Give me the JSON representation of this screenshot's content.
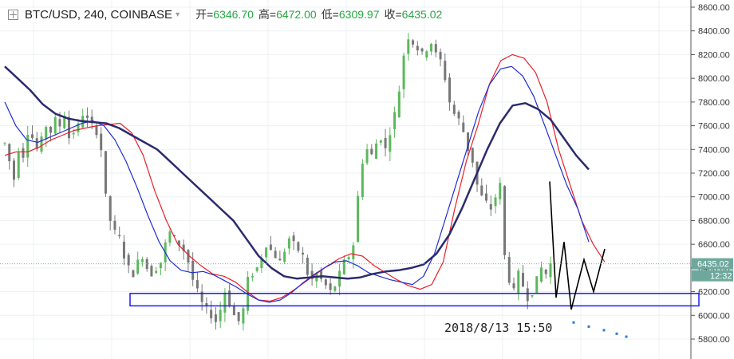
{
  "header": {
    "symbol": "BTC/USD, 240, COINBASE",
    "caret": "▾",
    "open_label": "开=",
    "open": "6346.70",
    "high_label": "高=",
    "high": "6472.00",
    "low_label": "低=",
    "low": "6309.97",
    "close_label": "收=",
    "close": "6435.02"
  },
  "chart_data": {
    "type": "candlestick",
    "y_axis": {
      "ticks": [
        5800,
        6000,
        6200,
        6400,
        6600,
        6800,
        7000,
        7200,
        7400,
        7600,
        7800,
        8000,
        8200,
        8400,
        8600
      ],
      "ylim": [
        5750,
        8620
      ],
      "unit": ".00"
    },
    "price_label": "6435.02",
    "timer_label": "12:32",
    "annotation": "2018/8/13  15:50",
    "grid": true,
    "support_zone": [
      6080,
      6185
    ],
    "candle_series": [
      7450,
      7300,
      7150,
      7400,
      7350,
      7550,
      7500,
      7400,
      7480,
      7600,
      7550,
      7650,
      7600,
      7700,
      7500,
      7550,
      7600,
      7700,
      7650,
      7600,
      7550,
      7400,
      7000,
      6800,
      6700,
      6650,
      6500,
      6400,
      6350,
      6450,
      6500,
      6400,
      6350,
      6400,
      6450,
      6600,
      6700,
      6650,
      6600,
      6550,
      6450,
      6300,
      6200,
      6100,
      6050,
      6000,
      5950,
      6050,
      6200,
      6100,
      6000,
      5950,
      6050,
      6300,
      6350,
      6400,
      6500,
      6600,
      6550,
      6500,
      6450,
      6550,
      6650,
      6600,
      6550,
      6500,
      6350,
      6300,
      6350,
      6300,
      6250,
      6200,
      6250,
      6350,
      6450,
      6500,
      6600,
      7000,
      7300,
      7400,
      7350,
      7450,
      7500,
      7400,
      7550,
      7700,
      7900,
      8200,
      8350,
      8300,
      8250,
      8200,
      8250,
      8300,
      8200,
      8150,
      8000,
      7800,
      7700,
      7650,
      7550,
      7400,
      7300,
      7100,
      7000,
      6950,
      6900,
      7000,
      7100,
      6500,
      6300,
      6200,
      6350,
      6250,
      6150,
      6200,
      6300,
      6400,
      6350,
      6435
    ],
    "series": [
      {
        "color": "#e8202a",
        "values": [
          7350,
          7380,
          7380,
          7420,
          7480,
          7520,
          7560,
          7580,
          7600,
          7610,
          7620,
          7540,
          7350,
          7050,
          6800,
          6600,
          6500,
          6420,
          6350,
          6330,
          6280,
          6200,
          6130,
          6120,
          6150,
          6210,
          6280,
          6350,
          6420,
          6480,
          6520,
          6500,
          6420,
          6360,
          6300,
          6250,
          6220,
          6260,
          6450,
          6900,
          7300,
          7600,
          7950,
          8150,
          8200,
          8170,
          8050,
          7800,
          7400,
          7100,
          6800,
          6600,
          6450
        ]
      },
      {
        "color": "#1f2bd6",
        "values": [
          7800,
          7600,
          7480,
          7460,
          7500,
          7540,
          7580,
          7620,
          7640,
          7600,
          7480,
          7300,
          7080,
          6840,
          6620,
          6460,
          6380,
          6360,
          6370,
          6340,
          6290,
          6240,
          6180,
          6130,
          6110,
          6130,
          6190,
          6270,
          6340,
          6400,
          6450,
          6460,
          6420,
          6360,
          6330,
          6300,
          6280,
          6260,
          6330,
          6520,
          6820,
          7120,
          7420,
          7720,
          7950,
          8080,
          8100,
          8020,
          7850,
          7600,
          7350,
          7100,
          6900,
          6620
        ]
      },
      {
        "color": "#2b2b6e",
        "values": [
          8100,
          8000,
          7900,
          7780,
          7700,
          7660,
          7640,
          7630,
          7620,
          7580,
          7520,
          7460,
          7400,
          7300,
          7200,
          7100,
          7000,
          6900,
          6800,
          6650,
          6500,
          6400,
          6330,
          6310,
          6320,
          6330,
          6320,
          6310,
          6320,
          6350,
          6370,
          6380,
          6400,
          6430,
          6520,
          6680,
          6900,
          7150,
          7400,
          7620,
          7770,
          7790,
          7740,
          7650,
          7500,
          7350,
          7230
        ]
      }
    ]
  }
}
